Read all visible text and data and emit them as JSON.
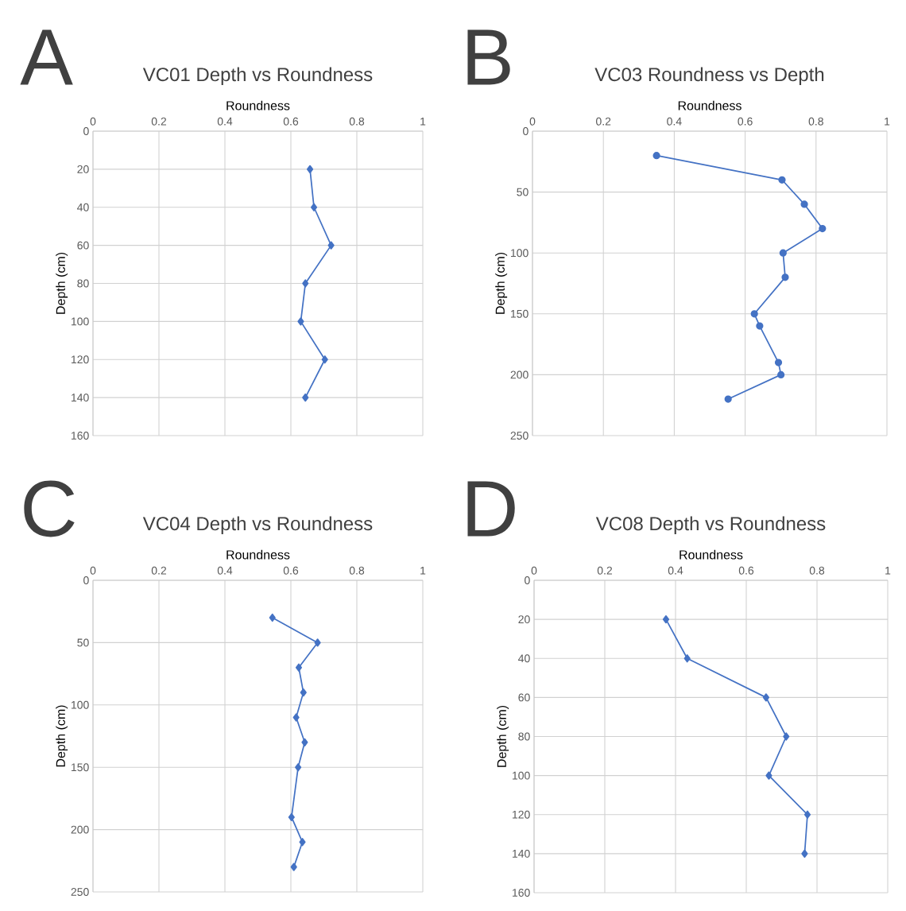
{
  "chart_data": [
    {
      "type": "line",
      "title": "VC01 Depth vs Roundness",
      "xlabel": "Roundness",
      "ylabel": "Depth (cm)",
      "annotations": [
        "A"
      ],
      "color": "#4472c4",
      "marker": "diamond",
      "line_style": "solid",
      "grid": true,
      "x": [
        0.658,
        0.67,
        0.722,
        0.644,
        0.63,
        0.703,
        0.644
      ],
      "values": [
        20,
        40,
        60,
        80,
        100,
        120,
        140
      ],
      "xlim": [
        0,
        1
      ],
      "xticks": [
        0,
        0.2,
        0.4,
        0.6,
        0.8,
        1
      ],
      "ylim": [
        160,
        0
      ],
      "yticks": [
        0,
        20,
        40,
        60,
        80,
        100,
        120,
        140,
        160
      ]
    },
    {
      "type": "line",
      "title": "VC03 Roundness vs Depth",
      "xlabel": "Roundness",
      "ylabel": "Depth (cm)",
      "annotations": [
        "B"
      ],
      "color": "#4472c4",
      "marker": "circle",
      "line_style": "solid",
      "grid": true,
      "x": [
        0.35,
        0.704,
        0.767,
        0.818,
        0.707,
        0.713,
        0.626,
        0.641,
        0.694,
        0.701,
        0.552
      ],
      "values": [
        20,
        40,
        60,
        80,
        100,
        120,
        150,
        160,
        190,
        200,
        220
      ],
      "xlim": [
        0,
        1
      ],
      "xticks": [
        0,
        0.2,
        0.4,
        0.6,
        0.8,
        1
      ],
      "ylim": [
        250,
        0
      ],
      "yticks": [
        0,
        50,
        100,
        150,
        200,
        250
      ]
    },
    {
      "type": "line",
      "title": "VC04 Depth vs Roundness",
      "xlabel": "Roundness",
      "ylabel": "Depth (cm)",
      "annotations": [
        "C"
      ],
      "color": "#4472c4",
      "marker": "diamond",
      "line_style": "solid",
      "grid": true,
      "x": [
        0.544,
        0.681,
        0.624,
        0.638,
        0.616,
        0.642,
        0.622,
        0.602,
        0.635,
        0.609
      ],
      "values": [
        30,
        50,
        70,
        90,
        110,
        130,
        150,
        190,
        210,
        230
      ],
      "xlim": [
        0,
        1
      ],
      "xticks": [
        0,
        0.2,
        0.4,
        0.6,
        0.8,
        1
      ],
      "ylim": [
        250,
        0
      ],
      "yticks": [
        0,
        50,
        100,
        150,
        200,
        250
      ]
    },
    {
      "type": "line",
      "title": "VC08 Depth vs Roundness",
      "xlabel": "Roundness",
      "ylabel": "Depth (cm)",
      "annotations": [
        "D"
      ],
      "color": "#4472c4",
      "marker": "diamond",
      "line_style": "solid",
      "grid": true,
      "x": [
        0.373,
        0.433,
        0.656,
        0.713,
        0.664,
        0.773,
        0.765
      ],
      "values": [
        20,
        40,
        60,
        80,
        100,
        120,
        140
      ],
      "xlim": [
        0,
        1
      ],
      "xticks": [
        0,
        0.2,
        0.4,
        0.6,
        0.8,
        1
      ],
      "ylim": [
        160,
        0
      ],
      "yticks": [
        0,
        20,
        40,
        60,
        80,
        100,
        120,
        140,
        160
      ]
    }
  ]
}
